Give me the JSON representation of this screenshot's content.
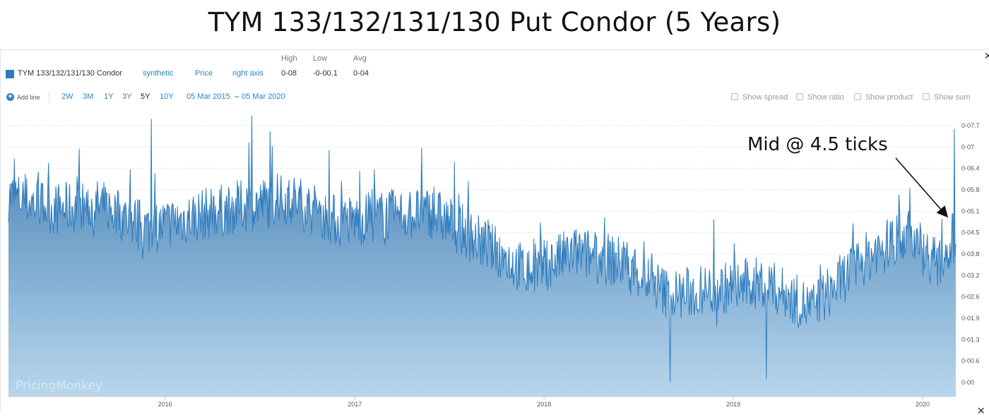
{
  "title": "TYM 133/132/131/130 Put Condor (5 Years)",
  "legend_header": {
    "high": "High",
    "low": "Low",
    "avg": "Avg"
  },
  "series_row": {
    "name": "TYM 133/132/131/130 Condor",
    "kind": "synthetic",
    "field": "Price",
    "axis": "right axis",
    "high": "0-08",
    "low": "-0-00.1",
    "avg": "0-04",
    "color": "#2e7cbf"
  },
  "toolbar": {
    "add_line": "Add line",
    "ranges": [
      "2W",
      "3M",
      "1Y",
      "3Y",
      "5Y",
      "10Y"
    ],
    "active_range": "5Y",
    "date_from": "05 Mar 2015",
    "date_sep": "–",
    "date_to": "05 Mar 2020",
    "options": [
      "Show spread",
      "Show ratio",
      "Show product",
      "Show sum"
    ]
  },
  "annotation": "Mid @ 4.5 ticks",
  "watermark": "PricingMonkey",
  "colors": {
    "line": "#2e7cbf",
    "area_top": "#3f7db3",
    "area_bottom": "#b8d6ec",
    "link": "#2a83c6"
  },
  "chart_data": {
    "type": "area",
    "y_unit": "32nds (displayed as 0-xx.x)",
    "y_ticks": [
      "0-07.7",
      "0-07",
      "0-06.4",
      "0-05.8",
      "0-05.1",
      "0-04.5",
      "0-03.8",
      "0-03.2",
      "0-02.6",
      "0-01.9",
      "0-01.3",
      "0-00.6",
      "0-00"
    ],
    "ylim": [
      0,
      8
    ],
    "x_ticks": [
      "2016",
      "2017",
      "2018",
      "2019",
      "2020"
    ],
    "xlim": [
      "2015-03-05",
      "2020-03-05"
    ],
    "series": [
      {
        "name": "TYM 133/132/131/130 Condor",
        "x": [
          "2015-03",
          "2015-06",
          "2015-09",
          "2015-12",
          "2016-03",
          "2016-06",
          "2016-09",
          "2016-12",
          "2017-03",
          "2017-06",
          "2017-09",
          "2017-12",
          "2018-03",
          "2018-06",
          "2018-09",
          "2018-12",
          "2019-03",
          "2019-06",
          "2019-09",
          "2019-12",
          "2020-02",
          "2020-03"
        ],
        "values": [
          5.6,
          5.2,
          5.3,
          4.6,
          5.0,
          5.3,
          5.5,
          4.8,
          5.0,
          5.1,
          4.2,
          3.3,
          3.9,
          3.6,
          2.6,
          2.8,
          3.0,
          2.2,
          3.6,
          4.5,
          3.5,
          4.5
        ]
      }
    ],
    "peaks": [
      {
        "x": "2015-12-06",
        "value": 7.9
      },
      {
        "x": "2016-06-17",
        "value": 8.0
      },
      {
        "x": "2020-03-02",
        "value": 7.6
      }
    ],
    "troughs": [
      {
        "x": "2018-09-01",
        "value": 0.0
      },
      {
        "x": "2019-03-05",
        "value": 0.1
      }
    ]
  }
}
